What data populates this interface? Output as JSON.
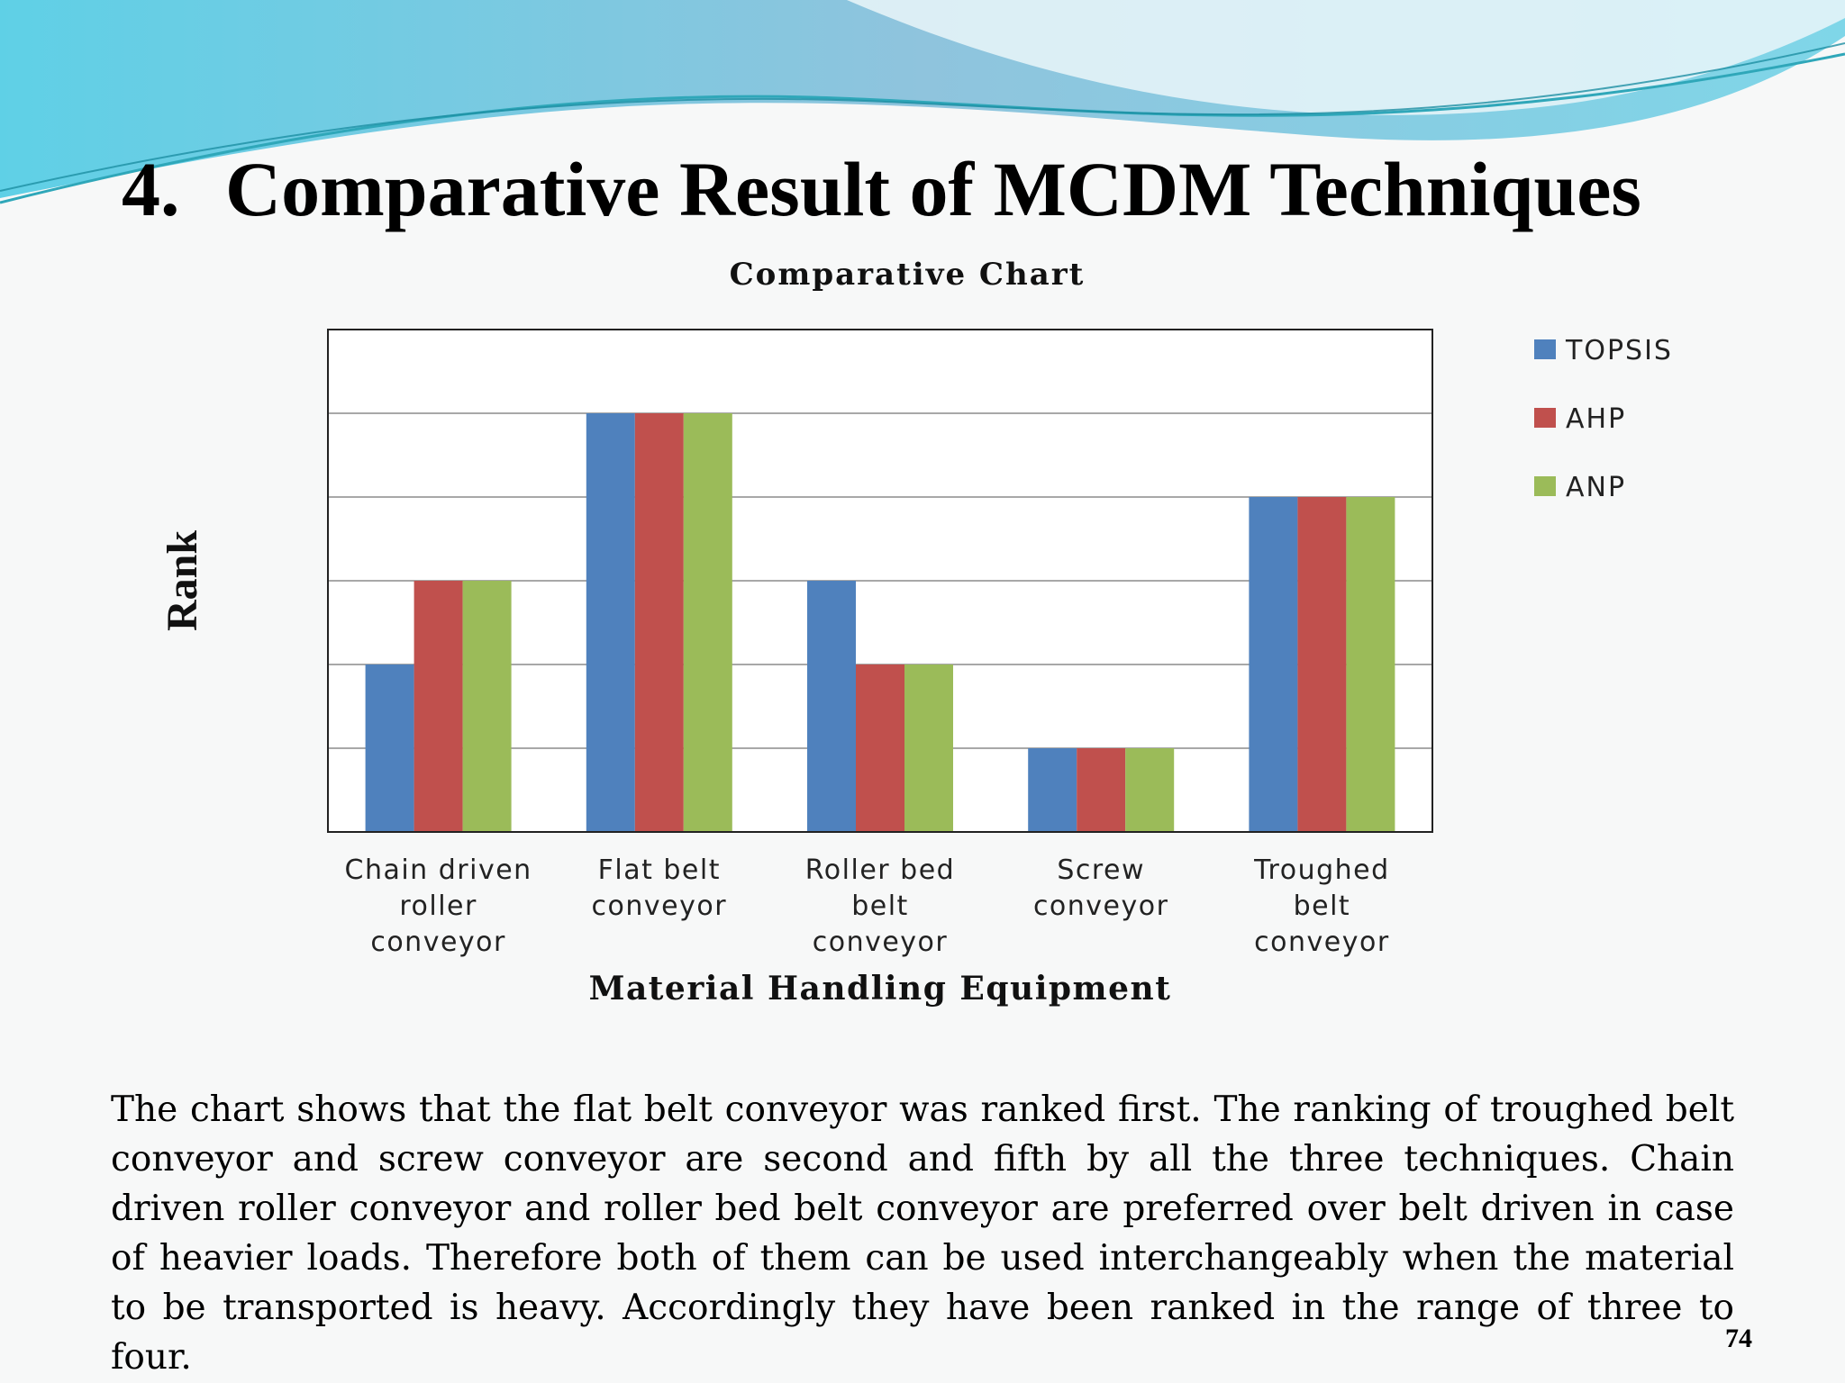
{
  "slide": {
    "number": "4.",
    "title": "Comparative Result of MCDM Techniques",
    "body": "The chart shows that the flat belt conveyor was ranked first. The ranking of troughed belt conveyor   and screw conveyor are second and fifth by all the three techniques. Chain driven roller conveyor and roller bed belt conveyor are preferred over belt driven in case of heavier loads. Therefore both of them can be used interchangeably when the material to be transported is heavy. Accordingly they have been ranked in the range of three to four.",
    "page_number": "74"
  },
  "colors": {
    "topsis": "#4f81bd",
    "ahp": "#c0504d",
    "anp": "#9bbb59",
    "header_wave": "#7fd3e6"
  },
  "chart_data": {
    "type": "bar",
    "title": "Comparative Chart",
    "xlabel": "Material Handling Equipment",
    "ylabel": "Rank",
    "categories": [
      [
        "Chain driven",
        "roller",
        "conveyor"
      ],
      [
        "Flat belt",
        "conveyor"
      ],
      [
        "Roller bed",
        "belt",
        "conveyor"
      ],
      [
        "Screw",
        "conveyor"
      ],
      [
        "Troughed",
        "belt",
        "conveyor"
      ]
    ],
    "series": [
      {
        "name": "TOPSIS",
        "color": "#4f81bd",
        "values": [
          2,
          5,
          3,
          1,
          4
        ]
      },
      {
        "name": "AHP",
        "color": "#c0504d",
        "values": [
          3,
          5,
          2,
          1,
          4
        ]
      },
      {
        "name": "ANP",
        "color": "#9bbb59",
        "values": [
          3,
          5,
          2,
          1,
          4
        ]
      }
    ],
    "ylim": [
      0,
      6
    ],
    "grid": true,
    "tick_labels_shown": false,
    "legend": "right"
  }
}
